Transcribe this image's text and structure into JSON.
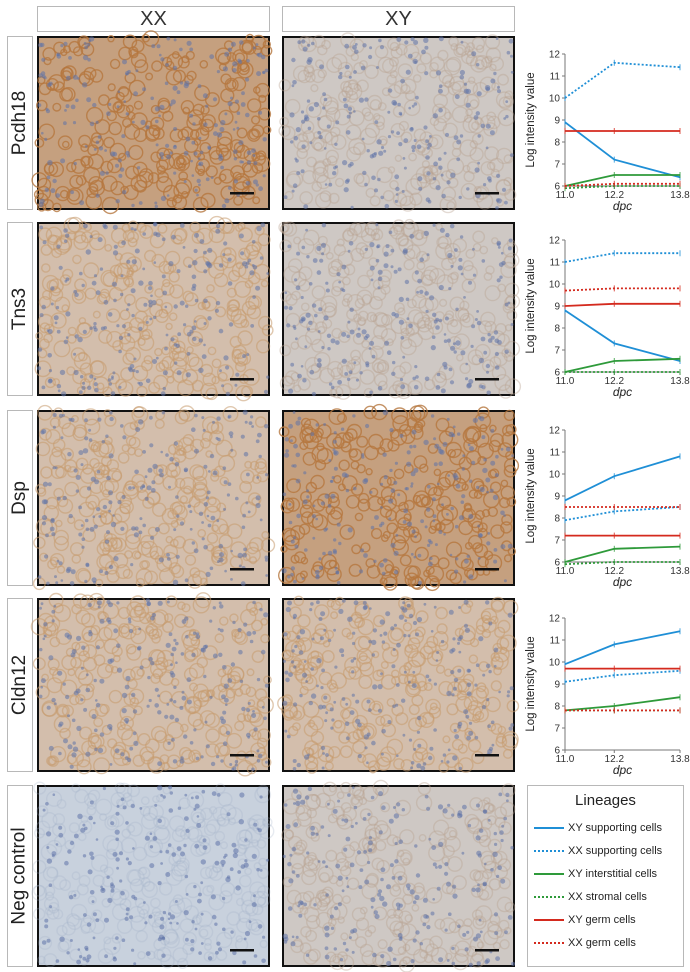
{
  "headers": {
    "xx": "XX",
    "xy": "XY"
  },
  "rows": [
    {
      "gene": "Pcdh18",
      "xx_stain": "strong",
      "xy_stain": "weak"
    },
    {
      "gene": "Tns3",
      "xx_stain": "moderate",
      "xy_stain": "weak"
    },
    {
      "gene": "Dsp",
      "xx_stain": "moderate",
      "xy_stain": "strong"
    },
    {
      "gene": "Cldn12",
      "xx_stain": "moderate",
      "xy_stain": "moderate"
    },
    {
      "gene": "Neg control",
      "xx_stain": "none",
      "xy_stain": "weak"
    }
  ],
  "legend": {
    "title": "Lineages",
    "items": [
      {
        "label": "XY supporting cells",
        "color": "#1f8fd6",
        "dash": "solid"
      },
      {
        "label": "XX supporting cells",
        "color": "#1f8fd6",
        "dash": "dotted"
      },
      {
        "label": "XY interstitial cells",
        "color": "#2e9a3a",
        "dash": "solid"
      },
      {
        "label": "XX stromal cells",
        "color": "#2e9a3a",
        "dash": "dotted"
      },
      {
        "label": "XY germ cells",
        "color": "#d42a1e",
        "dash": "solid"
      },
      {
        "label": "XX germ cells",
        "color": "#d42a1e",
        "dash": "dotted"
      }
    ]
  },
  "chart_data": [
    {
      "type": "line",
      "gene": "Pcdh18",
      "xlabel": "dpc",
      "ylabel": "Log intensity value",
      "x": [
        11.0,
        12.2,
        13.8
      ],
      "x_tick_labels": [
        "11.0",
        "12.2",
        "13.8"
      ],
      "ylim": [
        6,
        12
      ],
      "yticks": [
        6,
        7,
        8,
        9,
        10,
        11,
        12
      ],
      "series": [
        {
          "name": "XY supporting cells",
          "values": [
            8.9,
            7.2,
            6.4
          ]
        },
        {
          "name": "XX supporting cells",
          "values": [
            10.0,
            11.6,
            11.4
          ]
        },
        {
          "name": "XY interstitial cells",
          "values": [
            6.0,
            6.5,
            6.5
          ]
        },
        {
          "name": "XX stromal cells",
          "values": [
            5.9,
            6.0,
            6.0
          ]
        },
        {
          "name": "XY germ cells",
          "values": [
            8.5,
            8.5,
            8.5
          ]
        },
        {
          "name": "XX germ cells",
          "values": [
            6.0,
            6.1,
            6.1
          ]
        }
      ]
    },
    {
      "type": "line",
      "gene": "Tns3",
      "xlabel": "dpc",
      "ylabel": "Log intensity value",
      "x": [
        11.0,
        12.2,
        13.8
      ],
      "x_tick_labels": [
        "11.0",
        "12.2",
        "13.8"
      ],
      "ylim": [
        6,
        12
      ],
      "yticks": [
        6,
        7,
        8,
        9,
        10,
        11,
        12
      ],
      "series": [
        {
          "name": "XY supporting cells",
          "values": [
            8.8,
            7.3,
            6.5
          ]
        },
        {
          "name": "XX supporting cells",
          "values": [
            11.0,
            11.4,
            11.4
          ]
        },
        {
          "name": "XY interstitial cells",
          "values": [
            6.0,
            6.5,
            6.6
          ]
        },
        {
          "name": "XX stromal cells",
          "values": [
            6.0,
            6.0,
            6.0
          ]
        },
        {
          "name": "XY germ cells",
          "values": [
            9.0,
            9.1,
            9.1
          ]
        },
        {
          "name": "XX germ cells",
          "values": [
            9.7,
            9.8,
            9.8
          ]
        }
      ]
    },
    {
      "type": "line",
      "gene": "Dsp",
      "xlabel": "dpc",
      "ylabel": "Log intensity value",
      "x": [
        11.0,
        12.2,
        13.8
      ],
      "x_tick_labels": [
        "11.0",
        "12.2",
        "13.8"
      ],
      "ylim": [
        6,
        12
      ],
      "yticks": [
        6,
        7,
        8,
        9,
        10,
        11,
        12
      ],
      "series": [
        {
          "name": "XY supporting cells",
          "values": [
            8.8,
            9.9,
            10.8
          ]
        },
        {
          "name": "XX supporting cells",
          "values": [
            7.9,
            8.3,
            8.5
          ]
        },
        {
          "name": "XY interstitial cells",
          "values": [
            6.0,
            6.6,
            6.7
          ]
        },
        {
          "name": "XX stromal cells",
          "values": [
            5.9,
            6.0,
            6.0
          ]
        },
        {
          "name": "XY germ cells",
          "values": [
            7.2,
            7.2,
            7.2
          ]
        },
        {
          "name": "XX germ cells",
          "values": [
            8.5,
            8.5,
            8.5
          ]
        }
      ]
    },
    {
      "type": "line",
      "gene": "Cldn12",
      "xlabel": "dpc",
      "ylabel": "Log intensity value",
      "x": [
        11.0,
        12.2,
        13.8
      ],
      "x_tick_labels": [
        "11.0",
        "12.2",
        "13.8"
      ],
      "ylim": [
        6,
        12
      ],
      "yticks": [
        6,
        7,
        8,
        9,
        10,
        11,
        12
      ],
      "series": [
        {
          "name": "XY supporting cells",
          "values": [
            9.9,
            10.8,
            11.4
          ]
        },
        {
          "name": "XX supporting cells",
          "values": [
            9.1,
            9.4,
            9.6
          ]
        },
        {
          "name": "XY interstitial cells",
          "values": [
            7.8,
            8.0,
            8.4
          ]
        },
        {
          "name": "XX stromal cells",
          "values": [
            7.8,
            7.8,
            7.8
          ]
        },
        {
          "name": "XY germ cells",
          "values": [
            9.7,
            9.7,
            9.7
          ]
        },
        {
          "name": "XX germ cells",
          "values": [
            7.8,
            7.8,
            7.8
          ]
        }
      ]
    }
  ]
}
